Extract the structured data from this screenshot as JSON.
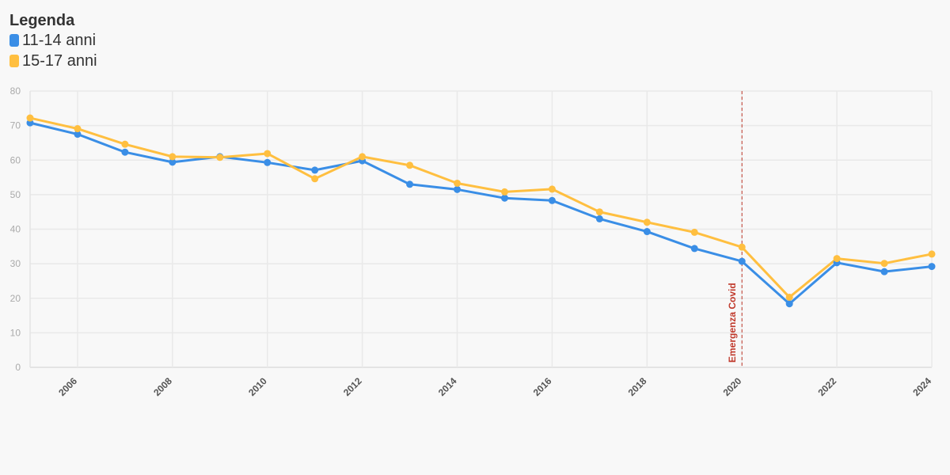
{
  "legend": {
    "title": "Legenda",
    "items": [
      {
        "label": "11-14 anni",
        "color": "#3a8ee6"
      },
      {
        "label": "15-17 anni",
        "color": "#ffbf40"
      }
    ]
  },
  "chart_data": {
    "type": "line",
    "x": [
      2005,
      2006,
      2007,
      2008,
      2009,
      2010,
      2011,
      2012,
      2013,
      2014,
      2015,
      2016,
      2017,
      2018,
      2019,
      2020,
      2021,
      2022,
      2023,
      2024
    ],
    "xticks": [
      2006,
      2008,
      2010,
      2012,
      2014,
      2016,
      2018,
      2020,
      2022,
      2024
    ],
    "yticks": [
      0,
      10,
      20,
      30,
      40,
      50,
      60,
      70,
      80
    ],
    "xlim": [
      2005,
      2024
    ],
    "ylim": [
      0,
      80
    ],
    "grid": true,
    "legend_position": "top-left",
    "series": [
      {
        "name": "11-14 anni",
        "color": "#3a8ee6",
        "values": [
          70.8,
          67.5,
          62.3,
          59.4,
          61.0,
          59.3,
          57.1,
          59.8,
          53.0,
          51.5,
          49.0,
          48.3,
          43.0,
          39.3,
          34.4,
          30.7,
          18.4,
          30.3,
          27.7,
          29.2
        ]
      },
      {
        "name": "15-17 anni",
        "color": "#ffbf40",
        "values": [
          72.2,
          69.1,
          64.6,
          61.0,
          60.8,
          61.9,
          54.6,
          61.0,
          58.5,
          53.3,
          50.8,
          51.6,
          45.0,
          42.0,
          39.1,
          34.8,
          20.3,
          31.5,
          30.1,
          32.8
        ]
      }
    ],
    "annotations": [
      {
        "x": 2020,
        "label": "Emergenza Covid",
        "color": "#c0392b"
      }
    ]
  }
}
